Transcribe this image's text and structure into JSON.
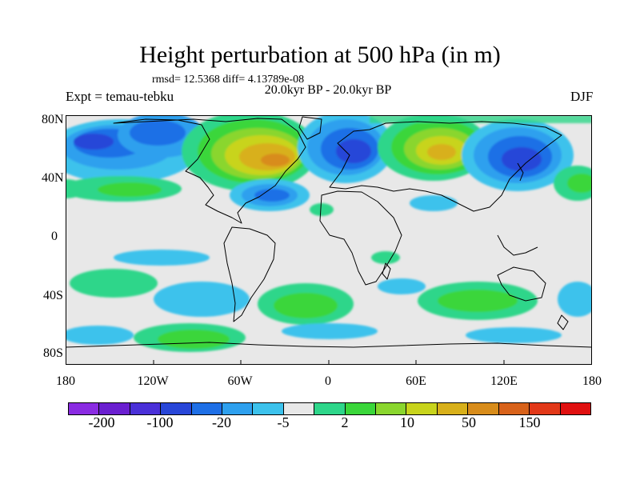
{
  "title": "Height perturbation at 500 hPa (in m)",
  "stats": "rmsd= 12.5368 diff= 4.13789e-08",
  "left_label": "Expt = temau-tebku",
  "center_label": "20.0kyr BP - 20.0kyr BP",
  "right_label": "DJF",
  "lat_labels": [
    "80N",
    "40N",
    "0",
    "40S",
    "80S"
  ],
  "lon_labels": [
    "180",
    "120W",
    "60W",
    "0",
    "60E",
    "120E",
    "180"
  ],
  "colorbar": {
    "colors": [
      "#8a2be2",
      "#6a1fd0",
      "#4a30d8",
      "#2846d8",
      "#1e6fe6",
      "#2ea0ee",
      "#3cc2ec",
      "#e8e8e8",
      "#2ed68a",
      "#3ad63a",
      "#8ad62e",
      "#c8d41c",
      "#d8b01a",
      "#d88c1a",
      "#d8621a",
      "#e23818",
      "#e01010"
    ],
    "labels": [
      "-200",
      "-100",
      "-20",
      "-5",
      "2",
      "10",
      "50",
      "150"
    ]
  }
}
